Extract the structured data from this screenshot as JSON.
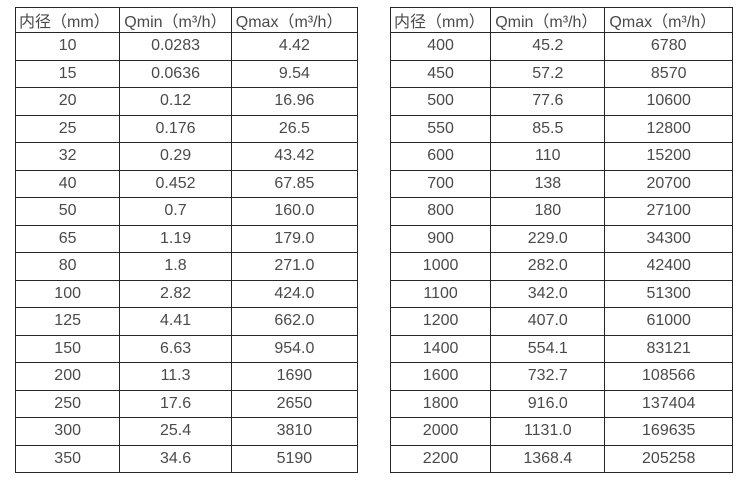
{
  "page": {
    "background_color": "#ffffff",
    "border_color": "#262626",
    "text_color": "#4a4a4a"
  },
  "chart_data": [
    {
      "type": "table",
      "name": "flow-rate-table-dn10-350",
      "headers": [
        "内径（mm）",
        "Qmin（m³/h）",
        "Qmax（m³/h）"
      ],
      "rows": [
        [
          "10",
          "0.0283",
          "4.42"
        ],
        [
          "15",
          "0.0636",
          "9.54"
        ],
        [
          "20",
          "0.12",
          "16.96"
        ],
        [
          "25",
          "0.176",
          "26.5"
        ],
        [
          "32",
          "0.29",
          "43.42"
        ],
        [
          "40",
          "0.452",
          "67.85"
        ],
        [
          "50",
          "0.7",
          "160.0"
        ],
        [
          "65",
          "1.19",
          "179.0"
        ],
        [
          "80",
          "1.8",
          "271.0"
        ],
        [
          "100",
          "2.82",
          "424.0"
        ],
        [
          "125",
          "4.41",
          "662.0"
        ],
        [
          "150",
          "6.63",
          "954.0"
        ],
        [
          "200",
          "11.3",
          "1690"
        ],
        [
          "250",
          "17.6",
          "2650"
        ],
        [
          "300",
          "25.4",
          "3810"
        ],
        [
          "350",
          "34.6",
          "5190"
        ]
      ]
    },
    {
      "type": "table",
      "name": "flow-rate-table-dn400-2200",
      "headers": [
        "内径（mm）",
        "Qmin（m³/h）",
        "Qmax（m³/h）"
      ],
      "rows": [
        [
          "400",
          "45.2",
          "6780"
        ],
        [
          "450",
          "57.2",
          "8570"
        ],
        [
          "500",
          "77.6",
          "10600"
        ],
        [
          "550",
          "85.5",
          "12800"
        ],
        [
          "600",
          "110",
          "15200"
        ],
        [
          "700",
          "138",
          "20700"
        ],
        [
          "800",
          "180",
          "27100"
        ],
        [
          "900",
          "229.0",
          "34300"
        ],
        [
          "1000",
          "282.0",
          "42400"
        ],
        [
          "1100",
          "342.0",
          "51300"
        ],
        [
          "1200",
          "407.0",
          "61000"
        ],
        [
          "1400",
          "554.1",
          "83121"
        ],
        [
          "1600",
          "732.7",
          "108566"
        ],
        [
          "1800",
          "916.0",
          "137404"
        ],
        [
          "2000",
          "1131.0",
          "169635"
        ],
        [
          "2200",
          "1368.4",
          "205258"
        ]
      ]
    }
  ]
}
